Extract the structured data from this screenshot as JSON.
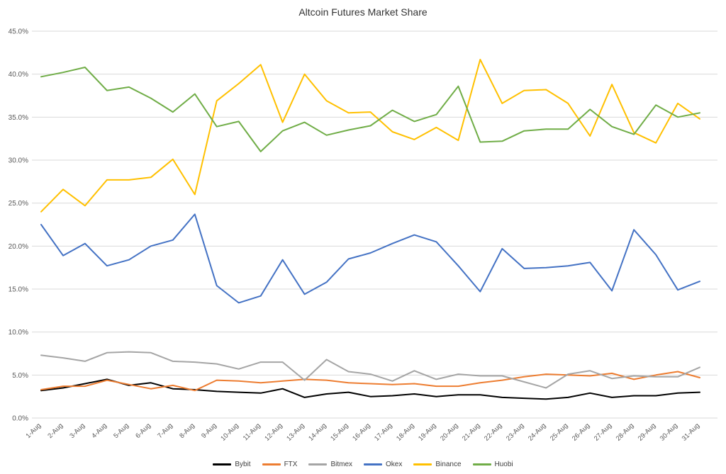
{
  "chart_data": {
    "type": "line",
    "title": "Altcoin Futures Market Share",
    "xlabel": "",
    "ylabel": "",
    "ylim": [
      0,
      45
    ],
    "ytick_step": 5,
    "ytick_format": "0.0%",
    "grid": true,
    "legend_position": "bottom",
    "x": [
      "1-Aug",
      "2-Aug",
      "3-Aug",
      "4-Aug",
      "5-Aug",
      "6-Aug",
      "7-Aug",
      "8-Aug",
      "9-Aug",
      "10-Aug",
      "11-Aug",
      "12-Aug",
      "13-Aug",
      "14-Aug",
      "15-Aug",
      "16-Aug",
      "17-Aug",
      "18-Aug",
      "19-Aug",
      "20-Aug",
      "21-Aug",
      "22-Aug",
      "23-Aug",
      "24-Aug",
      "25-Aug",
      "26-Aug",
      "27-Aug",
      "28-Aug",
      "29-Aug",
      "30-Aug",
      "31-Aug"
    ],
    "series": [
      {
        "name": "Bybit",
        "color": "#000000",
        "values": [
          3.2,
          3.5,
          4.0,
          4.5,
          3.8,
          4.1,
          3.4,
          3.3,
          3.1,
          3.0,
          2.9,
          3.4,
          2.4,
          2.8,
          3.0,
          2.5,
          2.6,
          2.8,
          2.5,
          2.7,
          2.7,
          2.4,
          2.3,
          2.2,
          2.4,
          2.9,
          2.4,
          2.6,
          2.6,
          2.9,
          3.0
        ]
      },
      {
        "name": "FTX",
        "color": "#ED7D31",
        "values": [
          3.3,
          3.7,
          3.7,
          4.4,
          3.9,
          3.4,
          3.8,
          3.2,
          4.4,
          4.3,
          4.1,
          4.3,
          4.5,
          4.4,
          4.1,
          4.0,
          3.9,
          4.0,
          3.7,
          3.7,
          4.1,
          4.4,
          4.8,
          5.1,
          5.0,
          4.9,
          5.2,
          4.5,
          5.0,
          5.4,
          4.7
        ]
      },
      {
        "name": "Bitmex",
        "color": "#A5A5A5",
        "values": [
          7.3,
          7.0,
          6.6,
          7.6,
          7.7,
          7.6,
          6.6,
          6.5,
          6.3,
          5.7,
          6.5,
          6.5,
          4.4,
          6.8,
          5.4,
          5.1,
          4.3,
          5.5,
          4.5,
          5.1,
          4.9,
          4.9,
          4.2,
          3.5,
          5.1,
          5.5,
          4.6,
          4.9,
          4.8,
          4.8,
          5.9
        ]
      },
      {
        "name": "Okex",
        "color": "#4472C4",
        "values": [
          22.5,
          18.9,
          20.3,
          17.7,
          18.4,
          20.0,
          20.7,
          23.7,
          15.4,
          13.4,
          14.2,
          18.4,
          14.4,
          15.8,
          18.5,
          19.2,
          20.3,
          21.3,
          20.5,
          17.7,
          14.7,
          19.7,
          17.4,
          17.5,
          17.7,
          18.1,
          14.8,
          21.9,
          19.0,
          14.9,
          15.9
        ]
      },
      {
        "name": "Binance",
        "color": "#FFC000",
        "values": [
          24.0,
          26.6,
          24.7,
          27.7,
          27.7,
          28.0,
          30.1,
          26.0,
          36.9,
          38.9,
          41.1,
          34.4,
          40.0,
          36.9,
          35.5,
          35.6,
          33.3,
          32.4,
          33.8,
          32.3,
          41.7,
          36.6,
          38.1,
          38.2,
          36.6,
          32.8,
          38.8,
          33.2,
          32.0,
          36.6,
          34.8
        ]
      },
      {
        "name": "Huobi",
        "color": "#70AD47",
        "values": [
          39.7,
          40.2,
          40.8,
          38.1,
          38.5,
          37.2,
          35.6,
          37.7,
          33.9,
          34.5,
          31.0,
          33.4,
          34.4,
          32.9,
          33.5,
          34.0,
          35.8,
          34.5,
          35.3,
          38.6,
          32.1,
          32.2,
          33.4,
          33.6,
          33.6,
          35.9,
          33.9,
          33.0,
          36.4,
          35.0,
          35.5
        ]
      }
    ],
    "axis_color": "#595959",
    "gridline_color": "#D9D9D9"
  }
}
